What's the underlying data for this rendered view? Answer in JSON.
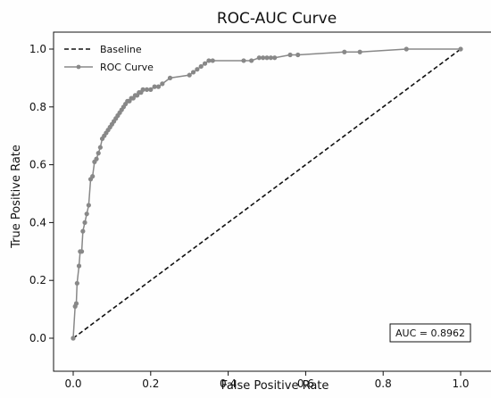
{
  "chart_data": {
    "type": "line",
    "title": "ROC-AUC Curve",
    "xlabel": "False Positive Rate",
    "ylabel": "True Positive Rate",
    "xlim": [
      0.0,
      1.0
    ],
    "ylim": [
      0.0,
      1.0
    ],
    "x_ticks": [
      "0.0",
      "0.2",
      "0.4",
      "0.6",
      "0.8",
      "1.0"
    ],
    "y_ticks": [
      "0.0",
      "0.2",
      "0.4",
      "0.6",
      "0.8",
      "1.0"
    ],
    "grid": false,
    "legend_placement": "top-left",
    "annotation": "AUC = 0.8962",
    "colors": {
      "roc": "#888888",
      "baseline": "#111111"
    },
    "series": [
      {
        "name": "Baseline",
        "style": "dashed",
        "x": [
          0.0,
          1.0
        ],
        "y": [
          0.0,
          1.0
        ]
      },
      {
        "name": "ROC Curve",
        "style": "solid-with-markers",
        "x": [
          0.0,
          0.0,
          0.005,
          0.008,
          0.01,
          0.015,
          0.018,
          0.022,
          0.025,
          0.03,
          0.035,
          0.04,
          0.045,
          0.05,
          0.055,
          0.06,
          0.065,
          0.07,
          0.075,
          0.08,
          0.085,
          0.09,
          0.095,
          0.1,
          0.105,
          0.11,
          0.115,
          0.12,
          0.125,
          0.13,
          0.135,
          0.14,
          0.145,
          0.15,
          0.155,
          0.16,
          0.165,
          0.17,
          0.175,
          0.18,
          0.19,
          0.2,
          0.21,
          0.22,
          0.23,
          0.25,
          0.3,
          0.31,
          0.32,
          0.33,
          0.34,
          0.35,
          0.36,
          0.44,
          0.46,
          0.48,
          0.49,
          0.5,
          0.51,
          0.52,
          0.56,
          0.58,
          0.7,
          0.74,
          0.86,
          1.0
        ],
        "y": [
          0.0,
          0.0,
          0.11,
          0.12,
          0.19,
          0.25,
          0.3,
          0.3,
          0.37,
          0.4,
          0.43,
          0.46,
          0.55,
          0.56,
          0.61,
          0.62,
          0.64,
          0.66,
          0.69,
          0.7,
          0.71,
          0.72,
          0.73,
          0.74,
          0.75,
          0.76,
          0.77,
          0.78,
          0.79,
          0.8,
          0.81,
          0.82,
          0.82,
          0.83,
          0.83,
          0.84,
          0.84,
          0.85,
          0.85,
          0.86,
          0.86,
          0.86,
          0.87,
          0.87,
          0.88,
          0.9,
          0.91,
          0.92,
          0.93,
          0.94,
          0.95,
          0.96,
          0.96,
          0.96,
          0.96,
          0.97,
          0.97,
          0.97,
          0.97,
          0.97,
          0.98,
          0.98,
          0.99,
          0.99,
          1.0,
          1.0
        ]
      }
    ]
  }
}
